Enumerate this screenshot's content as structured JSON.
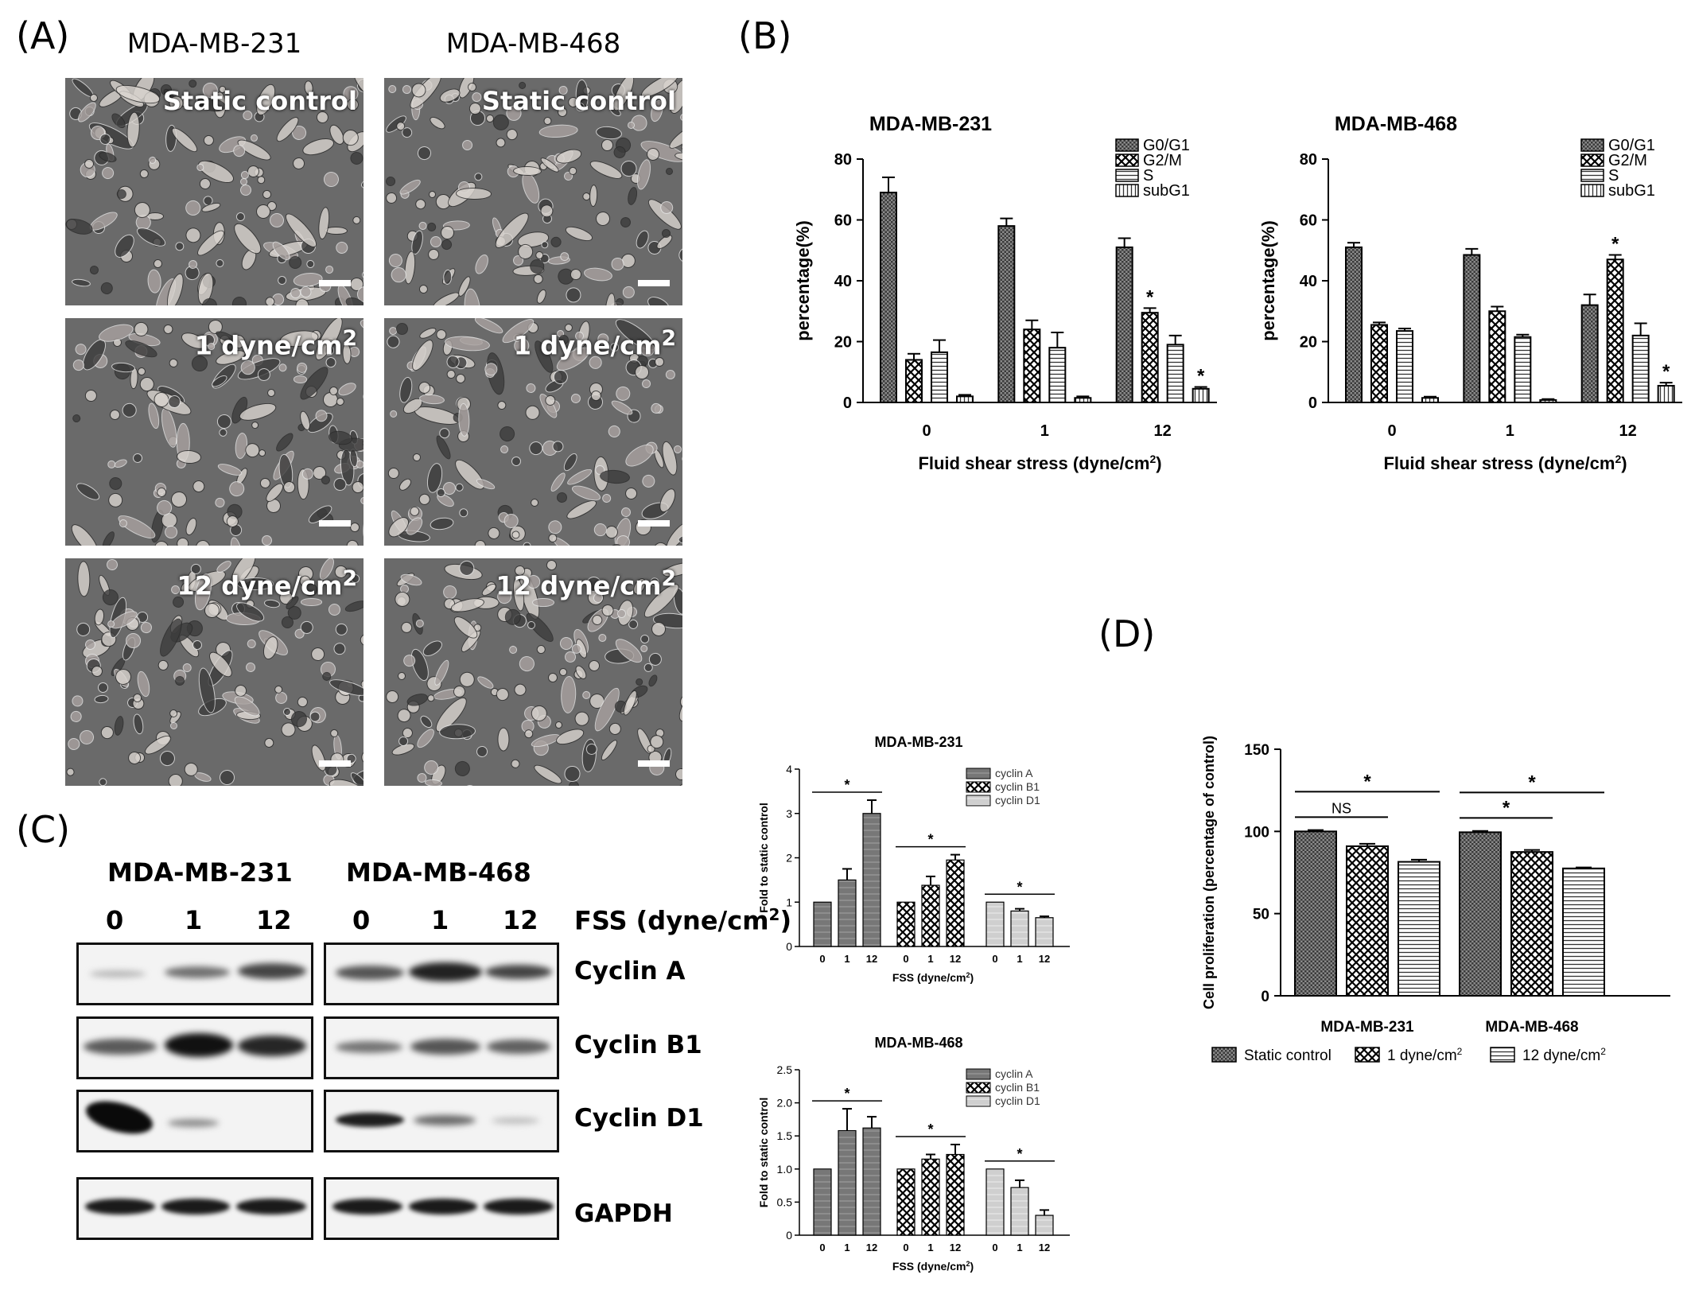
{
  "panel_labels": {
    "a": "(A)",
    "b": "(B)",
    "c": "(C)",
    "d": "(D)"
  },
  "panel_a": {
    "columns": [
      "MDA-MB-231",
      "MDA-MB-468"
    ],
    "conditions": [
      "Static control",
      "1 dyne/cm",
      "12 dyne/cm"
    ],
    "superscript": "2"
  },
  "panel_c_blot": {
    "cell_lines": [
      "MDA-MB-231",
      "MDA-MB-468"
    ],
    "lanes": [
      "0",
      "1",
      "12"
    ],
    "fss_label": "FSS (dyne/cm",
    "fss_sup": "2",
    "fss_close": ")",
    "proteins": [
      "Cyclin A",
      "Cyclin B1",
      "Cyclin D1",
      "GAPDH"
    ]
  },
  "patterns": {
    "G0/G1": "dense-dots",
    "G2/M": "checker",
    "S": "horizontal-lines",
    "subG1": "vertical-lines",
    "cyclin A": "dark-solid",
    "cyclin B1": "checker",
    "cyclin D1": "light-solid",
    "Static control": "dark-dots",
    "1 dyne/cm2": "checker",
    "12 dyne/cm2": "horizontal-lines"
  },
  "chart_data": [
    {
      "id": "b1",
      "type": "bar",
      "title": "MDA-MB-231",
      "xlabel": "Fluid shear stress (dyne/cm",
      "xlabel_sup": "2",
      "xlabel_close": ")",
      "ylabel": "percentage(%)",
      "categories": [
        "0",
        "1",
        "12"
      ],
      "ylim": [
        0,
        80
      ],
      "yticks": [
        0,
        20,
        40,
        60,
        80
      ],
      "legend_position": "top-right",
      "series": [
        {
          "name": "G0/G1",
          "values": [
            69,
            58,
            51
          ],
          "errors": [
            5,
            2.5,
            3
          ],
          "star": [
            false,
            false,
            false
          ]
        },
        {
          "name": "G2/M",
          "values": [
            14,
            24,
            29.5
          ],
          "errors": [
            2,
            3,
            1.5
          ],
          "star": [
            false,
            false,
            true
          ]
        },
        {
          "name": "S",
          "values": [
            16.5,
            18,
            19
          ],
          "errors": [
            4,
            5,
            3
          ],
          "star": [
            false,
            false,
            false
          ]
        },
        {
          "name": "subG1",
          "values": [
            2,
            1.5,
            4.5
          ],
          "errors": [
            0.5,
            0.5,
            0.6
          ],
          "star": [
            false,
            false,
            true
          ]
        }
      ]
    },
    {
      "id": "b2",
      "type": "bar",
      "title": "MDA-MB-468",
      "xlabel": "Fluid shear stress (dyne/cm",
      "xlabel_sup": "2",
      "xlabel_close": ")",
      "ylabel": "percentage(%)",
      "categories": [
        "0",
        "1",
        "12"
      ],
      "ylim": [
        0,
        80
      ],
      "yticks": [
        0,
        20,
        40,
        60,
        80
      ],
      "legend_position": "top-right",
      "series": [
        {
          "name": "G0/G1",
          "values": [
            51,
            48.5,
            32
          ],
          "errors": [
            1.5,
            2,
            3.5
          ],
          "star": [
            false,
            false,
            false
          ]
        },
        {
          "name": "G2/M",
          "values": [
            25.5,
            30,
            47
          ],
          "errors": [
            0.8,
            1.5,
            1.5
          ],
          "star": [
            false,
            false,
            true
          ]
        },
        {
          "name": "S",
          "values": [
            23.5,
            21.5,
            22
          ],
          "errors": [
            0.8,
            0.8,
            4
          ],
          "star": [
            false,
            false,
            false
          ]
        },
        {
          "name": "subG1",
          "values": [
            1.5,
            0.8,
            5.5
          ],
          "errors": [
            0.4,
            0.3,
            1
          ],
          "star": [
            false,
            false,
            true
          ]
        }
      ]
    },
    {
      "id": "c1",
      "type": "bar",
      "title": "MDA-MB-231",
      "xlabel": "FSS (dyne/cm",
      "xlabel_sup": "2",
      "xlabel_close": ")",
      "ylabel": "Fold to static control",
      "ylim": [
        0,
        4
      ],
      "yticks": [
        "0",
        "1",
        "2",
        "3",
        "4"
      ],
      "legend_position": "top-right",
      "groups": [
        {
          "name": "cyclin A",
          "x": [
            "0",
            "1",
            "12"
          ],
          "values": [
            1,
            1.5,
            3
          ],
          "errors": [
            0,
            0.25,
            0.3
          ]
        },
        {
          "name": "cyclin B1",
          "x": [
            "0",
            "1",
            "12"
          ],
          "values": [
            1,
            1.38,
            1.95
          ],
          "errors": [
            0,
            0.2,
            0.12
          ]
        },
        {
          "name": "cyclin D1",
          "x": [
            "0",
            "1",
            "12"
          ],
          "values": [
            1,
            0.8,
            0.65
          ],
          "errors": [
            0,
            0.05,
            0.03
          ]
        }
      ],
      "significance": [
        "*",
        "*",
        "*"
      ]
    },
    {
      "id": "c2",
      "type": "bar",
      "title": "MDA-MB-468",
      "xlabel": "FSS (dyne/cm",
      "xlabel_sup": "2",
      "xlabel_close": ")",
      "ylabel": "Fold to static control",
      "ylim": [
        0,
        2.5
      ],
      "yticks": [
        "0",
        "0.5",
        "1.0",
        "1.5",
        "2.0",
        "2.5"
      ],
      "legend_position": "top-right",
      "groups": [
        {
          "name": "cyclin A",
          "x": [
            "0",
            "1",
            "12"
          ],
          "values": [
            1,
            1.58,
            1.62
          ],
          "errors": [
            0,
            0.33,
            0.17
          ]
        },
        {
          "name": "cyclin B1",
          "x": [
            "0",
            "1",
            "12"
          ],
          "values": [
            1,
            1.15,
            1.22
          ],
          "errors": [
            0,
            0.07,
            0.15
          ]
        },
        {
          "name": "cyclin D1",
          "x": [
            "0",
            "1",
            "12"
          ],
          "values": [
            1,
            0.72,
            0.3
          ],
          "errors": [
            0,
            0.11,
            0.08
          ]
        }
      ],
      "significance": [
        "*",
        "*",
        "*"
      ]
    },
    {
      "id": "d",
      "type": "bar",
      "ylabel": "Cell proliferation (percentage of control)",
      "categories": [
        "MDA-MB-231",
        "MDA-MB-468"
      ],
      "ylim": [
        0,
        150
      ],
      "yticks": [
        0,
        50,
        100,
        150
      ],
      "legend_position": "bottom",
      "series": [
        {
          "name": "Static control",
          "values": [
            100,
            99.5
          ],
          "errors": [
            0.8,
            0.8
          ]
        },
        {
          "name": "1 dyne/cm",
          "sup": "2",
          "values": [
            91,
            87.5
          ],
          "errors": [
            1.5,
            1.2
          ]
        },
        {
          "name": "12 dyne/cm",
          "sup": "2",
          "values": [
            81.5,
            77.5
          ],
          "errors": [
            1.3,
            0.6
          ]
        }
      ],
      "brackets": [
        {
          "group": 0,
          "from": 0,
          "to": 1,
          "label": "NS"
        },
        {
          "group": 0,
          "from": 0,
          "to": 2,
          "label": "*"
        },
        {
          "group": 1,
          "from": 0,
          "to": 1,
          "label": "*"
        },
        {
          "group": 1,
          "from": 0,
          "to": 2,
          "label": "*"
        }
      ]
    }
  ]
}
